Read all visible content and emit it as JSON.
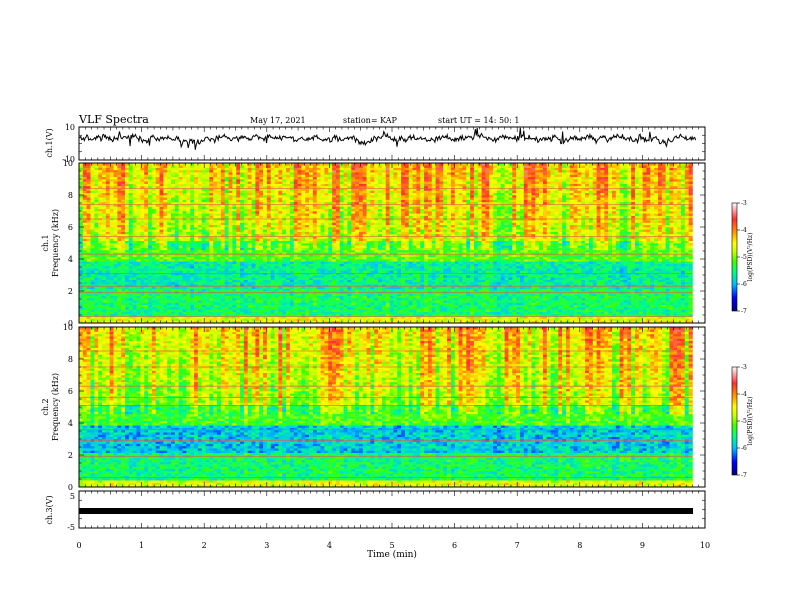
{
  "header": {
    "title": "VLF Spectra",
    "date": "May 17, 2021",
    "station": "station= KAP",
    "start": "start UT =   14: 50: 1"
  },
  "chart_data": [
    {
      "type": "line",
      "panel": "ch1-waveform",
      "ylabel": "ch.1(V)",
      "ylim": [
        -10,
        10
      ],
      "yticks": [
        "10",
        "-10"
      ],
      "xlim": [
        0,
        10
      ],
      "description_level": "noisy waveform around 3 V, amplitude about 2–4 V"
    },
    {
      "type": "heatmap",
      "panel": "ch1-spectrogram",
      "ylabel": "ch.1\nFrequency (kHz)",
      "ylabel_lines": [
        "ch.1",
        "Frequency (kHz)"
      ],
      "ylim": [
        0,
        10
      ],
      "yticks": [
        "0",
        "2",
        "4",
        "6",
        "8",
        "10"
      ],
      "xlim": [
        0,
        9.8
      ],
      "colorbar": {
        "label": "log(PSD)(V²/Hz)",
        "range": [
          -7,
          -3
        ],
        "ticks": [
          "-3",
          "-4",
          "-5",
          "-6",
          "-7"
        ],
        "colors": [
          "#000080",
          "#0000ff",
          "#00bfff",
          "#00ff80",
          "#40ff00",
          "#c8ff00",
          "#ffff00",
          "#ffa000",
          "#ff3030",
          "#ffffff"
        ]
      }
    },
    {
      "type": "heatmap",
      "panel": "ch2-spectrogram",
      "ylabel": "ch.2\nFrequency (kHz)",
      "ylabel_lines": [
        "ch.2",
        "Frequency (kHz)"
      ],
      "ylim": [
        0,
        10
      ],
      "yticks": [
        "0",
        "2",
        "4",
        "6",
        "8",
        "10"
      ],
      "xlim": [
        0,
        9.8
      ],
      "colorbar": {
        "label": "log(PSD)(V²/Hz)",
        "range": [
          -7,
          -3
        ],
        "ticks": [
          "-3",
          "-4",
          "-5",
          "-6",
          "-7"
        ],
        "colors": [
          "#000080",
          "#0000ff",
          "#00bfff",
          "#00ff80",
          "#40ff00",
          "#c8ff00",
          "#ffff00",
          "#ffa000",
          "#ff3030",
          "#ffffff"
        ]
      }
    },
    {
      "type": "line",
      "panel": "ch3-waveform",
      "ylabel": "ch.3(V)",
      "ylim": [
        -5,
        5
      ],
      "yticks": [
        "5",
        "-5"
      ],
      "xlim": [
        0,
        10
      ],
      "level": 0
    }
  ],
  "xaxis": {
    "label": "Time (min)",
    "ticks": [
      "0",
      "1",
      "2",
      "3",
      "4",
      "5",
      "6",
      "7",
      "8",
      "9",
      "10"
    ]
  }
}
